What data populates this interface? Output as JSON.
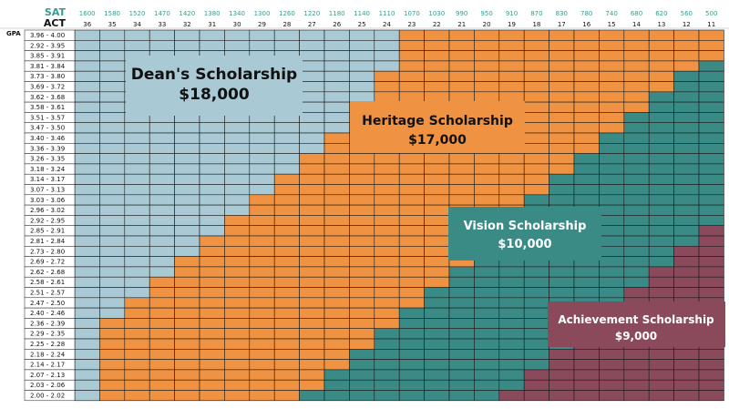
{
  "chart_data": {
    "type": "heatmap",
    "row_axis_label": "GPA",
    "sat_label": "SAT",
    "act_label": "ACT",
    "sat_scores": [
      "1600",
      "1580",
      "1520",
      "1470",
      "1420",
      "1380",
      "1340",
      "1300",
      "1260",
      "1220",
      "1180",
      "1140",
      "1110",
      "1070",
      "1030",
      "990",
      "950",
      "910",
      "870",
      "830",
      "780",
      "740",
      "680",
      "620",
      "560",
      "500"
    ],
    "act_scores": [
      "36",
      "35",
      "34",
      "33",
      "32",
      "31",
      "30",
      "29",
      "28",
      "27",
      "26",
      "25",
      "24",
      "23",
      "22",
      "21",
      "20",
      "19",
      "18",
      "17",
      "16",
      "15",
      "14",
      "13",
      "12",
      "11"
    ],
    "gpa_ranges": [
      "3.96 - 4.00",
      "2.92 - 3.95",
      "3.85 - 3.91",
      "3.81 - 3.84",
      "3.73 - 3.80",
      "3.69 - 3.72",
      "3.62 - 3.68",
      "3.58 - 3.61",
      "3.51 - 3.57",
      "3.47 - 3.50",
      "3.40 - 3.46",
      "3.36 - 3.39",
      "3.26 - 3.35",
      "3.18 - 3.24",
      "3.14 - 3.17",
      "3.07 - 3.13",
      "3.03 - 3.06",
      "2.96 - 3.02",
      "2.92 - 2.95",
      "2.85 - 2.91",
      "2.81 - 2.84",
      "2.73 - 2.80",
      "2.69 - 2.72",
      "2.62 - 2.68",
      "2.58 - 2.61",
      "2.51 - 2.57",
      "2.47 - 2.50",
      "2.40 - 2.46",
      "2.36 - 2.39",
      "2.29 - 2.35",
      "2.25 - 2.28",
      "2.18 - 2.24",
      "2.14 - 2.17",
      "2.07 - 2.13",
      "2.03 - 2.06",
      "2.00 - 2.02"
    ],
    "tiers": [
      {
        "key": "deans",
        "name": "Dean's Scholarship",
        "amount": "$18,000",
        "color": "#a9c9d4",
        "text_color": "#111111"
      },
      {
        "key": "heritage",
        "name": "Heritage Scholarship",
        "amount": "$17,000",
        "color": "#ef9343",
        "text_color": "#111111"
      },
      {
        "key": "vision",
        "name": "Vision Scholarship",
        "amount": "$10,000",
        "color": "#3a8a86",
        "text_color": "#ffffff"
      },
      {
        "key": "achievement",
        "name": "Achievement Scholarship",
        "amount": "$9,000",
        "color": "#8a4a5c",
        "text_color": "#ffffff"
      }
    ],
    "boundaries": {
      "deans_last_act_index": [
        12,
        12,
        12,
        12,
        11,
        11,
        11,
        10,
        10,
        10,
        9,
        9,
        8,
        8,
        7,
        7,
        6,
        6,
        5,
        5,
        4,
        4,
        3,
        3,
        2,
        2,
        1,
        1,
        0,
        0,
        0,
        0,
        0,
        0,
        0,
        0
      ],
      "heritage_last_act_index": [
        25,
        25,
        25,
        24,
        23,
        23,
        22,
        22,
        21,
        21,
        20,
        20,
        19,
        19,
        18,
        18,
        17,
        17,
        16,
        16,
        15,
        15,
        15,
        14,
        14,
        13,
        13,
        12,
        12,
        11,
        11,
        10,
        10,
        9,
        9,
        8
      ],
      "vision_last_act_index": [
        25,
        25,
        25,
        25,
        25,
        25,
        25,
        25,
        25,
        25,
        25,
        25,
        25,
        25,
        25,
        25,
        25,
        25,
        25,
        24,
        24,
        23,
        23,
        22,
        22,
        21,
        21,
        20,
        20,
        19,
        19,
        18,
        18,
        17,
        17,
        16
      ]
    },
    "grid": true
  }
}
